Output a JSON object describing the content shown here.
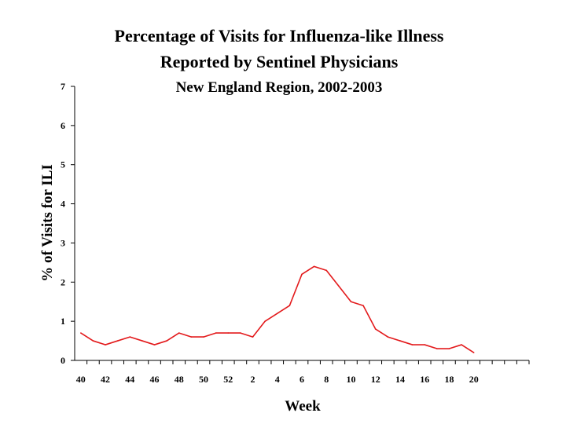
{
  "chart_data": {
    "type": "line",
    "title": "Percentage of Visits for Influenza-like Illness",
    "title_line2": "Reported by Sentinel Physicians",
    "subtitle": "New England Region, 2002-2003",
    "xlabel": "Week",
    "ylabel": "% of Visits for ILI",
    "ylim": [
      0,
      7
    ],
    "yticks": [
      "0",
      "1",
      "2",
      "3",
      "4",
      "5",
      "6",
      "7"
    ],
    "xtick_labels": [
      "40",
      "42",
      "44",
      "46",
      "48",
      "50",
      "52",
      "2",
      "4",
      "6",
      "8",
      "10",
      "12",
      "14",
      "16",
      "18",
      "20"
    ],
    "grid": false,
    "legend": "none",
    "line_color": "#e31a1c",
    "series": [
      {
        "values": [
          0.7,
          0.5,
          0.4,
          0.5,
          0.6,
          0.5,
          0.4,
          0.5,
          0.7,
          0.6,
          0.6,
          0.7,
          0.7,
          0.7,
          0.6,
          1.0,
          1.2,
          1.4,
          2.2,
          2.4,
          2.3,
          1.9,
          1.5,
          1.4,
          0.8,
          0.6,
          0.5,
          0.4,
          0.4,
          0.3,
          0.3,
          0.4,
          0.2
        ]
      }
    ]
  }
}
